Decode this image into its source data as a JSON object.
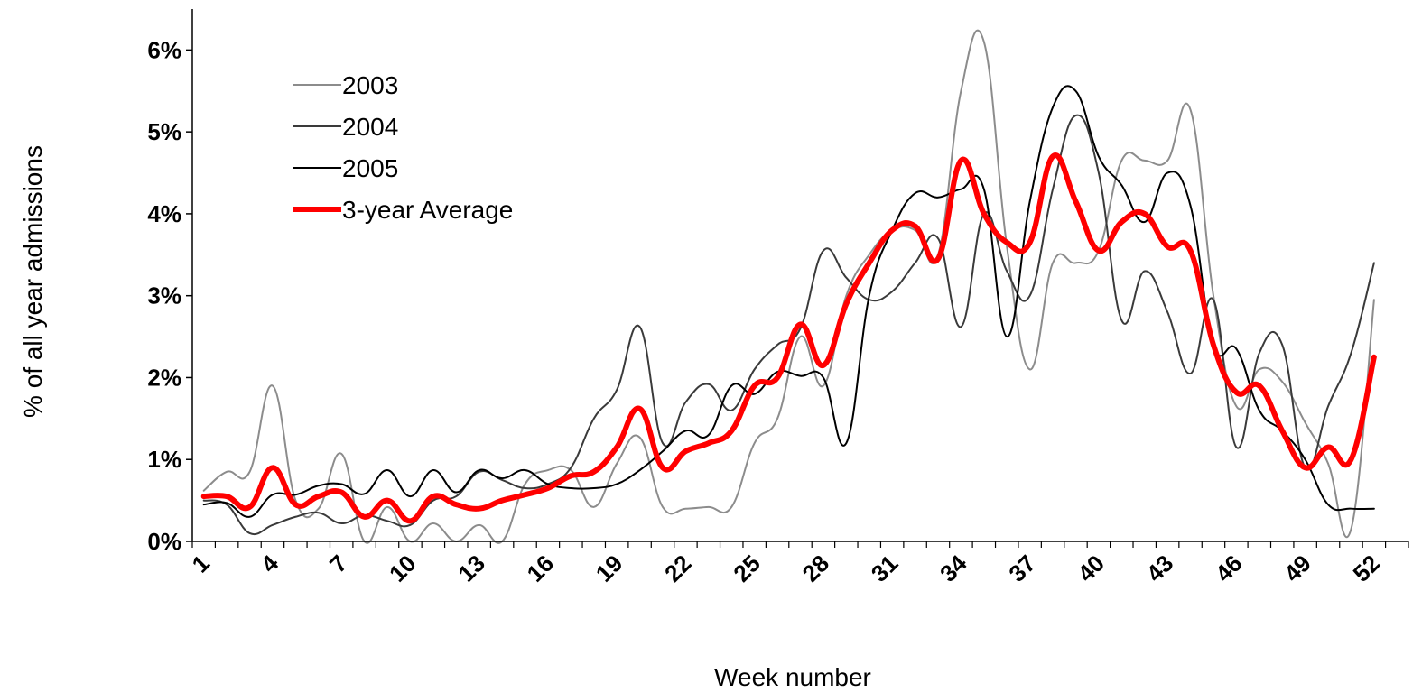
{
  "chart_data": {
    "type": "line",
    "title": "",
    "xlabel": "Week number",
    "ylabel": "% of all year admissions",
    "xlim": [
      0.5,
      53.5
    ],
    "ylim": [
      0,
      6.5
    ],
    "x_ticks": [
      1,
      4,
      7,
      10,
      13,
      16,
      19,
      22,
      25,
      28,
      31,
      34,
      37,
      40,
      43,
      46,
      49,
      52
    ],
    "y_ticks": [
      {
        "value": 0,
        "label": "0%"
      },
      {
        "value": 1,
        "label": "1%"
      },
      {
        "value": 2,
        "label": "2%"
      },
      {
        "value": 3,
        "label": "3%"
      },
      {
        "value": 4,
        "label": "4%"
      },
      {
        "value": 5,
        "label": "5%"
      },
      {
        "value": 6,
        "label": "6%"
      }
    ],
    "grid": false,
    "legend_position": "top-left",
    "series": [
      {
        "name": "2003",
        "color": "#8c8c8c",
        "width": 2,
        "values": [
          0.62,
          0.85,
          0.85,
          1.9,
          0.5,
          0.4,
          1.07,
          0.0,
          0.42,
          0.0,
          0.22,
          0.0,
          0.2,
          0.0,
          0.7,
          0.87,
          0.87,
          0.42,
          0.95,
          1.27,
          0.42,
          0.4,
          0.42,
          0.42,
          1.2,
          1.5,
          2.5,
          1.9,
          3.0,
          3.5,
          3.8,
          3.8,
          3.5,
          5.5,
          6.1,
          3.6,
          2.1,
          3.4,
          3.4,
          3.55,
          4.65,
          4.65,
          4.65,
          5.27,
          3.0,
          1.65,
          2.1,
          1.95,
          1.45,
          0.95,
          0.15,
          2.95
        ]
      },
      {
        "name": "2004",
        "color": "#3a3a3a",
        "width": 2,
        "values": [
          0.5,
          0.45,
          0.1,
          0.2,
          0.3,
          0.35,
          0.22,
          0.32,
          0.25,
          0.2,
          0.5,
          0.55,
          0.85,
          0.75,
          0.65,
          0.7,
          0.9,
          1.5,
          1.85,
          2.62,
          1.2,
          1.7,
          1.92,
          1.6,
          2.1,
          2.4,
          2.6,
          3.55,
          3.22,
          2.95,
          3.05,
          3.4,
          3.7,
          2.62,
          4.0,
          3.3,
          3.0,
          4.3,
          5.2,
          4.5,
          2.7,
          3.3,
          2.8,
          2.05,
          2.95,
          1.15,
          2.3,
          2.4,
          0.9,
          1.65,
          2.3,
          3.4
        ]
      },
      {
        "name": "2005",
        "color": "#000000",
        "width": 2,
        "values": [
          0.45,
          0.47,
          0.3,
          0.57,
          0.57,
          0.68,
          0.7,
          0.58,
          0.87,
          0.55,
          0.87,
          0.6,
          0.87,
          0.77,
          0.87,
          0.7,
          0.65,
          0.65,
          0.7,
          0.87,
          1.1,
          1.35,
          1.3,
          1.9,
          1.8,
          2.07,
          2.02,
          2.0,
          1.2,
          3.0,
          3.8,
          4.25,
          4.2,
          4.3,
          4.3,
          2.5,
          4.15,
          5.3,
          5.5,
          4.7,
          4.35,
          3.9,
          4.5,
          4.1,
          2.4,
          2.35,
          1.6,
          1.35,
          1.0,
          0.45,
          0.4,
          0.4
        ]
      },
      {
        "name": "3-year Average",
        "color": "#ff0000",
        "width": 6,
        "values": [
          0.55,
          0.55,
          0.42,
          0.9,
          0.45,
          0.55,
          0.6,
          0.3,
          0.5,
          0.25,
          0.55,
          0.45,
          0.4,
          0.5,
          0.57,
          0.65,
          0.8,
          0.85,
          1.15,
          1.62,
          0.9,
          1.1,
          1.2,
          1.35,
          1.9,
          2.0,
          2.65,
          2.15,
          2.9,
          3.4,
          3.8,
          3.85,
          3.45,
          4.65,
          4.0,
          3.65,
          3.65,
          4.7,
          4.15,
          3.55,
          3.9,
          4.0,
          3.6,
          3.55,
          2.4,
          1.82,
          1.9,
          1.35,
          0.9,
          1.15,
          1.0,
          2.25
        ]
      }
    ]
  }
}
